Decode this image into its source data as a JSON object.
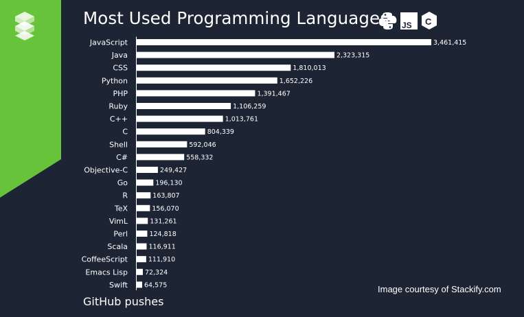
{
  "header": {
    "title": "Most Used Programming Languages",
    "icons": [
      "python-icon",
      "javascript-icon",
      "c-icon"
    ],
    "js_icon_text": "JS",
    "c_icon_text": "C"
  },
  "footer": {
    "label": "GitHub pushes",
    "credit": "Image courtesy of Stackify.com"
  },
  "colors": {
    "background": "#1d2433",
    "accent": "#66c33a",
    "bar": "#ffffff",
    "text": "#ffffff"
  },
  "chart_data": {
    "type": "bar",
    "orientation": "horizontal",
    "title": "Most Used Programming Languages",
    "xlabel": "GitHub pushes",
    "categories": [
      "JavaScript",
      "Java",
      "CSS",
      "Python",
      "PHP",
      "Ruby",
      "C++",
      "C",
      "Shell",
      "C#",
      "Objective-C",
      "Go",
      "R",
      "TeX",
      "VimL",
      "Perl",
      "Scala",
      "CoffeeScript",
      "Emacs Lisp",
      "Swift"
    ],
    "values": [
      3461415,
      2323315,
      1810013,
      1652226,
      1391467,
      1106259,
      1013761,
      804339,
      592046,
      558332,
      249427,
      196130,
      163807,
      156070,
      131261,
      124818,
      116911,
      111910,
      72324,
      64575
    ],
    "value_labels": [
      "3,461,415",
      "2,323,315",
      "1,810,013",
      "1,652,226",
      "1,391,467",
      "1,106,259",
      "1,013,761",
      "804,339",
      "592,046",
      "558,332",
      "249,427",
      "196,130",
      "163,807",
      "156,070",
      "131,261",
      "124,818",
      "116,911",
      "111,910",
      "72,324",
      "64,575"
    ],
    "xlim": [
      0,
      3461415
    ],
    "grid": false,
    "legend": "none"
  }
}
